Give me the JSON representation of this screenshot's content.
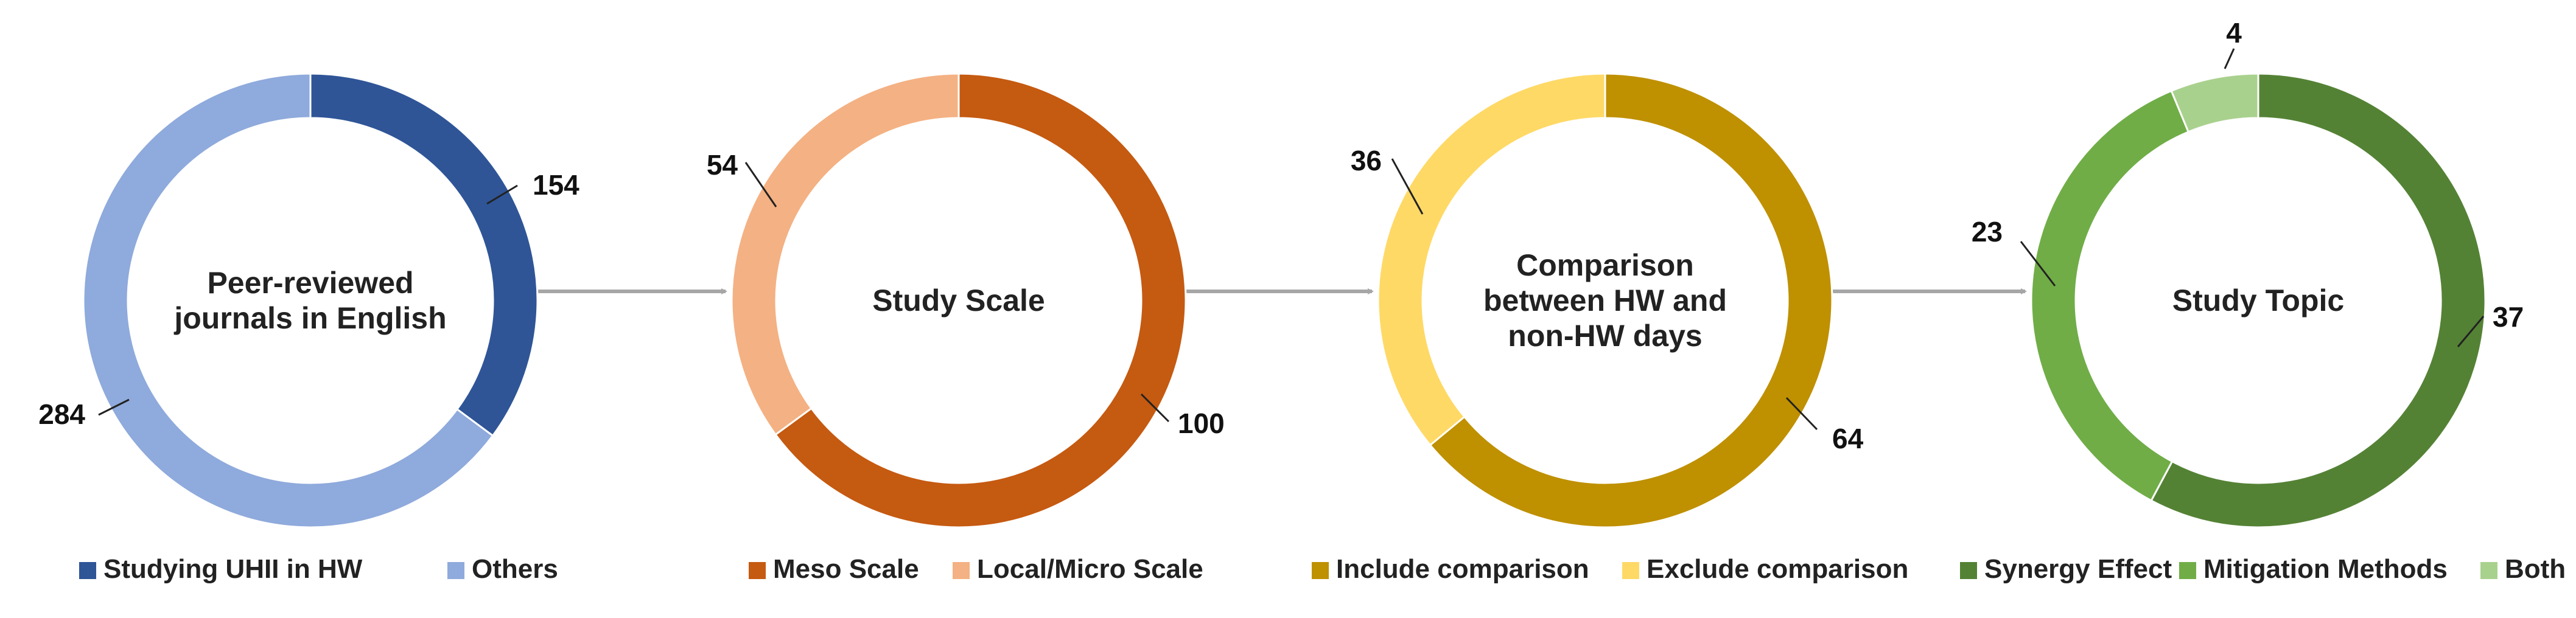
{
  "chart_data": [
    {
      "type": "donut",
      "center_label": [
        "Peer-reviewed",
        "journals in English"
      ],
      "series": [
        {
          "label": "Studying UHII in HW",
          "value": 154,
          "color": "#2F5597"
        },
        {
          "label": "Others",
          "value": 284,
          "color": "#8FAADC"
        }
      ]
    },
    {
      "type": "donut",
      "center_label": [
        "Study Scale"
      ],
      "series": [
        {
          "label": "Meso Scale",
          "value": 100,
          "color": "#C55A11"
        },
        {
          "label": "Local/Micro Scale",
          "value": 54,
          "color": "#F4B183"
        }
      ]
    },
    {
      "type": "donut",
      "center_label": [
        "Comparison",
        "between HW and",
        "non-HW days"
      ],
      "series": [
        {
          "label": "Include comparison",
          "value": 64,
          "color": "#BF9000"
        },
        {
          "label": "Exclude comparison",
          "value": 36,
          "color": "#FFD966"
        }
      ]
    },
    {
      "type": "donut",
      "center_label": [
        "Study Topic"
      ],
      "series": [
        {
          "label": "Synergy Effect",
          "value": 37,
          "color": "#548235"
        },
        {
          "label": "Mitigation Methods",
          "value": 23,
          "color": "#70AD47"
        },
        {
          "label": "Both",
          "value": 4,
          "color": "#A9D18E"
        }
      ]
    }
  ],
  "connector_color": "#A6A6A6"
}
